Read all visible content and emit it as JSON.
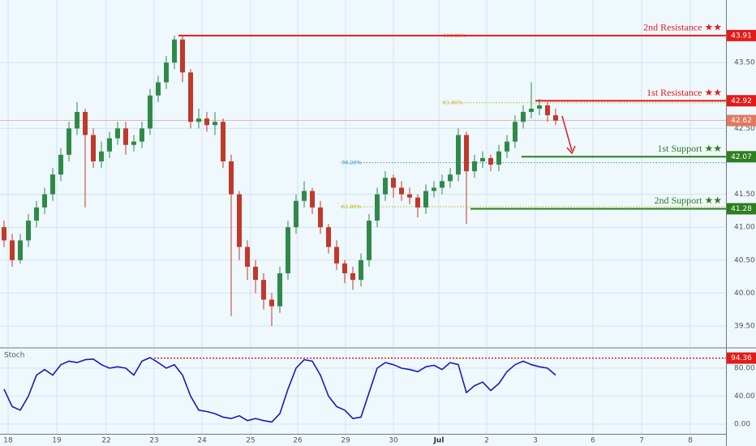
{
  "chart_data": {
    "type": "candlestick",
    "up_color": "#2f8a4a",
    "down_color": "#c0392b",
    "open": [
      41.0,
      40.8,
      40.5,
      40.8,
      41.1,
      41.3,
      41.5,
      41.8,
      42.1,
      42.5,
      42.75,
      42.4,
      42.0,
      42.15,
      42.35,
      42.5,
      42.25,
      42.3,
      42.5,
      43.0,
      43.2,
      43.5,
      43.85,
      43.35,
      42.6,
      42.65,
      42.55,
      42.6,
      42.0,
      41.5,
      40.7,
      40.4,
      40.2,
      39.9,
      39.8,
      40.3,
      41.0,
      41.4,
      41.55,
      41.3,
      41.0,
      40.7,
      40.45,
      40.3,
      40.2,
      40.5,
      41.1,
      41.5,
      41.75,
      41.6,
      41.5,
      41.45,
      41.3,
      41.55,
      41.6,
      41.7,
      41.8,
      42.4,
      41.85,
      42.0,
      42.05,
      41.95,
      42.15,
      42.3,
      42.6,
      42.75,
      42.8,
      42.85,
      42.7
    ],
    "high": [
      41.1,
      40.9,
      40.9,
      41.2,
      41.4,
      41.6,
      41.9,
      42.2,
      42.6,
      42.9,
      42.8,
      42.5,
      42.3,
      42.45,
      42.6,
      42.6,
      42.4,
      42.6,
      43.1,
      43.3,
      43.6,
      43.91,
      43.9,
      43.4,
      42.8,
      42.75,
      42.75,
      42.65,
      42.1,
      41.55,
      40.8,
      40.5,
      40.3,
      40.0,
      40.4,
      41.1,
      41.5,
      41.7,
      41.6,
      41.4,
      41.05,
      40.8,
      40.5,
      40.4,
      40.6,
      41.2,
      41.6,
      41.85,
      41.8,
      41.7,
      41.6,
      41.5,
      41.65,
      41.7,
      41.8,
      41.9,
      42.5,
      42.45,
      42.1,
      42.15,
      42.1,
      42.25,
      42.4,
      42.7,
      42.85,
      43.2,
      42.95,
      42.9,
      42.8
    ],
    "low": [
      40.7,
      40.4,
      40.45,
      40.7,
      41.0,
      41.2,
      41.4,
      41.7,
      42.0,
      42.4,
      41.3,
      41.9,
      41.9,
      42.05,
      42.25,
      42.1,
      42.15,
      42.2,
      42.4,
      42.9,
      43.1,
      43.4,
      43.2,
      42.5,
      42.5,
      42.45,
      42.4,
      41.9,
      39.65,
      40.5,
      40.2,
      40.0,
      39.75,
      39.5,
      39.7,
      40.2,
      40.9,
      41.3,
      41.2,
      40.9,
      40.6,
      40.35,
      40.15,
      40.05,
      40.1,
      40.4,
      41.0,
      41.4,
      41.45,
      41.4,
      41.35,
      41.15,
      41.2,
      41.45,
      41.5,
      41.6,
      41.7,
      41.05,
      41.75,
      41.9,
      41.85,
      41.85,
      42.05,
      42.2,
      42.5,
      42.65,
      42.7,
      42.6,
      42.55
    ],
    "close": [
      40.8,
      40.5,
      40.8,
      41.1,
      41.3,
      41.5,
      41.8,
      42.1,
      42.5,
      42.75,
      42.4,
      42.0,
      42.15,
      42.35,
      42.5,
      42.25,
      42.3,
      42.5,
      43.0,
      43.2,
      43.5,
      43.85,
      43.35,
      42.6,
      42.65,
      42.55,
      42.6,
      42.0,
      41.5,
      40.7,
      40.4,
      40.2,
      39.9,
      39.8,
      40.3,
      41.0,
      41.4,
      41.55,
      41.3,
      41.0,
      40.7,
      40.45,
      40.3,
      40.2,
      40.5,
      41.1,
      41.5,
      41.75,
      41.6,
      41.5,
      41.45,
      41.3,
      41.55,
      41.6,
      41.7,
      41.8,
      42.4,
      41.85,
      42.0,
      42.05,
      41.95,
      42.15,
      42.3,
      42.6,
      42.75,
      42.8,
      42.85,
      42.7,
      42.62
    ],
    "xlim": [
      -0.5,
      89
    ],
    "xticks": [
      {
        "value": 0.5,
        "label": "18"
      },
      {
        "value": 6.5,
        "label": "19"
      },
      {
        "value": 12.6,
        "label": "22"
      },
      {
        "value": 18.5,
        "label": "23"
      },
      {
        "value": 24.4,
        "label": "24"
      },
      {
        "value": 30.4,
        "label": "25"
      },
      {
        "value": 36.2,
        "label": "26"
      },
      {
        "value": 42.1,
        "label": "29"
      },
      {
        "value": 48,
        "label": "30"
      },
      {
        "value": 53.6,
        "label": "Jul"
      },
      {
        "value": 59.5,
        "label": "2"
      },
      {
        "value": 65.5,
        "label": "3"
      },
      {
        "value": 72.6,
        "label": "6"
      },
      {
        "value": 78.6,
        "label": "7"
      },
      {
        "value": 84.6,
        "label": "8"
      }
    ],
    "ylim": [
      39.18,
      44.45
    ],
    "yticks": [
      {
        "value": 39.5,
        "label": "39.50"
      },
      {
        "value": 40,
        "label": "40.00"
      },
      {
        "value": 40.5,
        "label": "40.50"
      },
      {
        "value": 41,
        "label": "41.00"
      },
      {
        "value": 41.5,
        "label": "41.50"
      },
      {
        "value": 42.5,
        "label": "42.50"
      },
      {
        "value": 43.5,
        "label": "43.50"
      }
    ],
    "grid": true,
    "last_price": {
      "value": 42.62,
      "color": "#e07a5f"
    },
    "levels": [
      {
        "name": "2nd Resistance ★★",
        "value": 43.91,
        "color": "#e31b1b"
      },
      {
        "name": "1st Resistance ★★",
        "value": 42.92,
        "color": "#e31b1b"
      },
      {
        "name": "1st Support ★★",
        "value": 42.07,
        "color": "#2e7d1e"
      },
      {
        "name": "2nd Support ★★",
        "value": 41.28,
        "color": "#2e7d1e"
      }
    ],
    "fib": [
      {
        "label": "100.00%",
        "value": 43.91,
        "color": "#e0a030"
      },
      {
        "label": "61.80%",
        "value": 42.89,
        "color": "#c9b820"
      },
      {
        "label": "38.20%",
        "value": 41.98,
        "color": "#4a90c8"
      },
      {
        "label": "61.80%",
        "value": 41.31,
        "color": "#c9b820"
      }
    ],
    "stoch": {
      "title": "Stoch",
      "color": "#1a1ab8",
      "values": [
        50,
        25,
        20,
        40,
        70,
        78,
        70,
        85,
        90,
        88,
        92,
        93,
        85,
        80,
        82,
        80,
        70,
        90,
        95,
        88,
        80,
        85,
        70,
        40,
        20,
        18,
        15,
        10,
        8,
        12,
        5,
        8,
        5,
        3,
        15,
        50,
        80,
        92,
        90,
        70,
        40,
        25,
        20,
        8,
        10,
        45,
        80,
        88,
        85,
        80,
        78,
        75,
        82,
        84,
        78,
        88,
        85,
        45,
        55,
        60,
        48,
        58,
        75,
        85,
        90,
        85,
        82,
        80,
        70
      ],
      "ylim": [
        -13.9,
        107.8
      ],
      "yticks": [
        {
          "value": 0,
          "label": "0.00"
        },
        {
          "value": 40,
          "label": "40.00"
        },
        {
          "value": 80,
          "label": "80.00"
        }
      ],
      "level": {
        "value": 94.36,
        "color": "#e31b1b"
      }
    }
  }
}
